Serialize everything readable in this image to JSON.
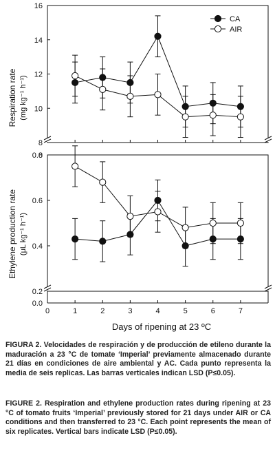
{
  "chart_data": [
    {
      "type": "line",
      "ylabel": "Respiration rate",
      "ylabel_units": "(mg kg⁻¹ h⁻¹)",
      "ylim": [
        8,
        16
      ],
      "yticks": [
        "8",
        "10",
        "12",
        "14",
        "16"
      ],
      "x": [
        1,
        2,
        3,
        4,
        5,
        6,
        7
      ],
      "xlim": [
        0,
        8
      ],
      "axis_break": "bottom-left",
      "legend_position": "top-right",
      "series": [
        {
          "name": "CA",
          "marker": "filled-circle",
          "values": [
            11.5,
            11.8,
            11.5,
            14.2,
            10.1,
            10.3,
            10.1
          ],
          "err": [
            1.2,
            1.2,
            1.2,
            1.2,
            1.2,
            1.2,
            1.2
          ]
        },
        {
          "name": "AIR",
          "marker": "open-circle",
          "values": [
            11.9,
            11.1,
            10.7,
            10.8,
            9.5,
            9.6,
            9.5
          ],
          "err": [
            1.2,
            1.2,
            1.2,
            1.2,
            1.2,
            1.2,
            1.2
          ]
        }
      ]
    },
    {
      "type": "line",
      "ylabel": "Ethylene production rate",
      "ylabel_units": "(μL kg⁻¹ h⁻¹)",
      "ylim": [
        0.2,
        0.8
      ],
      "yticks": [
        "0.2",
        "0.4",
        "0.6",
        "0.8"
      ],
      "y_origin_label": "0.0",
      "top_zero_label": "0",
      "x": [
        1,
        2,
        3,
        4,
        5,
        6,
        7
      ],
      "xlim": [
        0,
        8
      ],
      "xticks": [
        "0",
        "1",
        "2",
        "3",
        "4",
        "5",
        "6",
        "7"
      ],
      "xlabel": "Days of ripening at 23 ºC",
      "axis_break": "bottom-left",
      "series": [
        {
          "name": "CA",
          "marker": "filled-circle",
          "values": [
            0.43,
            0.42,
            0.45,
            0.6,
            0.4,
            0.43,
            0.43
          ],
          "err": [
            0.09,
            0.09,
            0.09,
            0.09,
            0.09,
            0.09,
            0.09
          ]
        },
        {
          "name": "AIR",
          "marker": "open-circle",
          "values": [
            0.75,
            0.68,
            0.53,
            0.55,
            0.48,
            0.5,
            0.5
          ],
          "err": [
            0.09,
            0.09,
            0.09,
            0.09,
            0.09,
            0.09,
            0.09
          ]
        }
      ]
    }
  ],
  "caption_es": "FIGURA 2. Velocidades de respiración y de producción de etileno durante la maduración a 23 °C de tomate ‘Imperial’ previamente almacenado durante 21 días en condiciones de aire ambiental y AC. Cada punto representa la media de seis replicas. Las barras verticales indican LSD (P≤0.05).",
  "caption_en": "FIGURE 2. Respiration and ethylene production rates during ripening at 23 °C of tomato fruits ‘Imperial’ previously stored for 21 days under AIR or CA conditions and then transferred to 23 °C. Each point represents the mean of six replicates. Vertical bars indicate LSD (P≤0.05).",
  "colors": {
    "ink": "#111111",
    "marker_open_fill": "#ffffff"
  }
}
